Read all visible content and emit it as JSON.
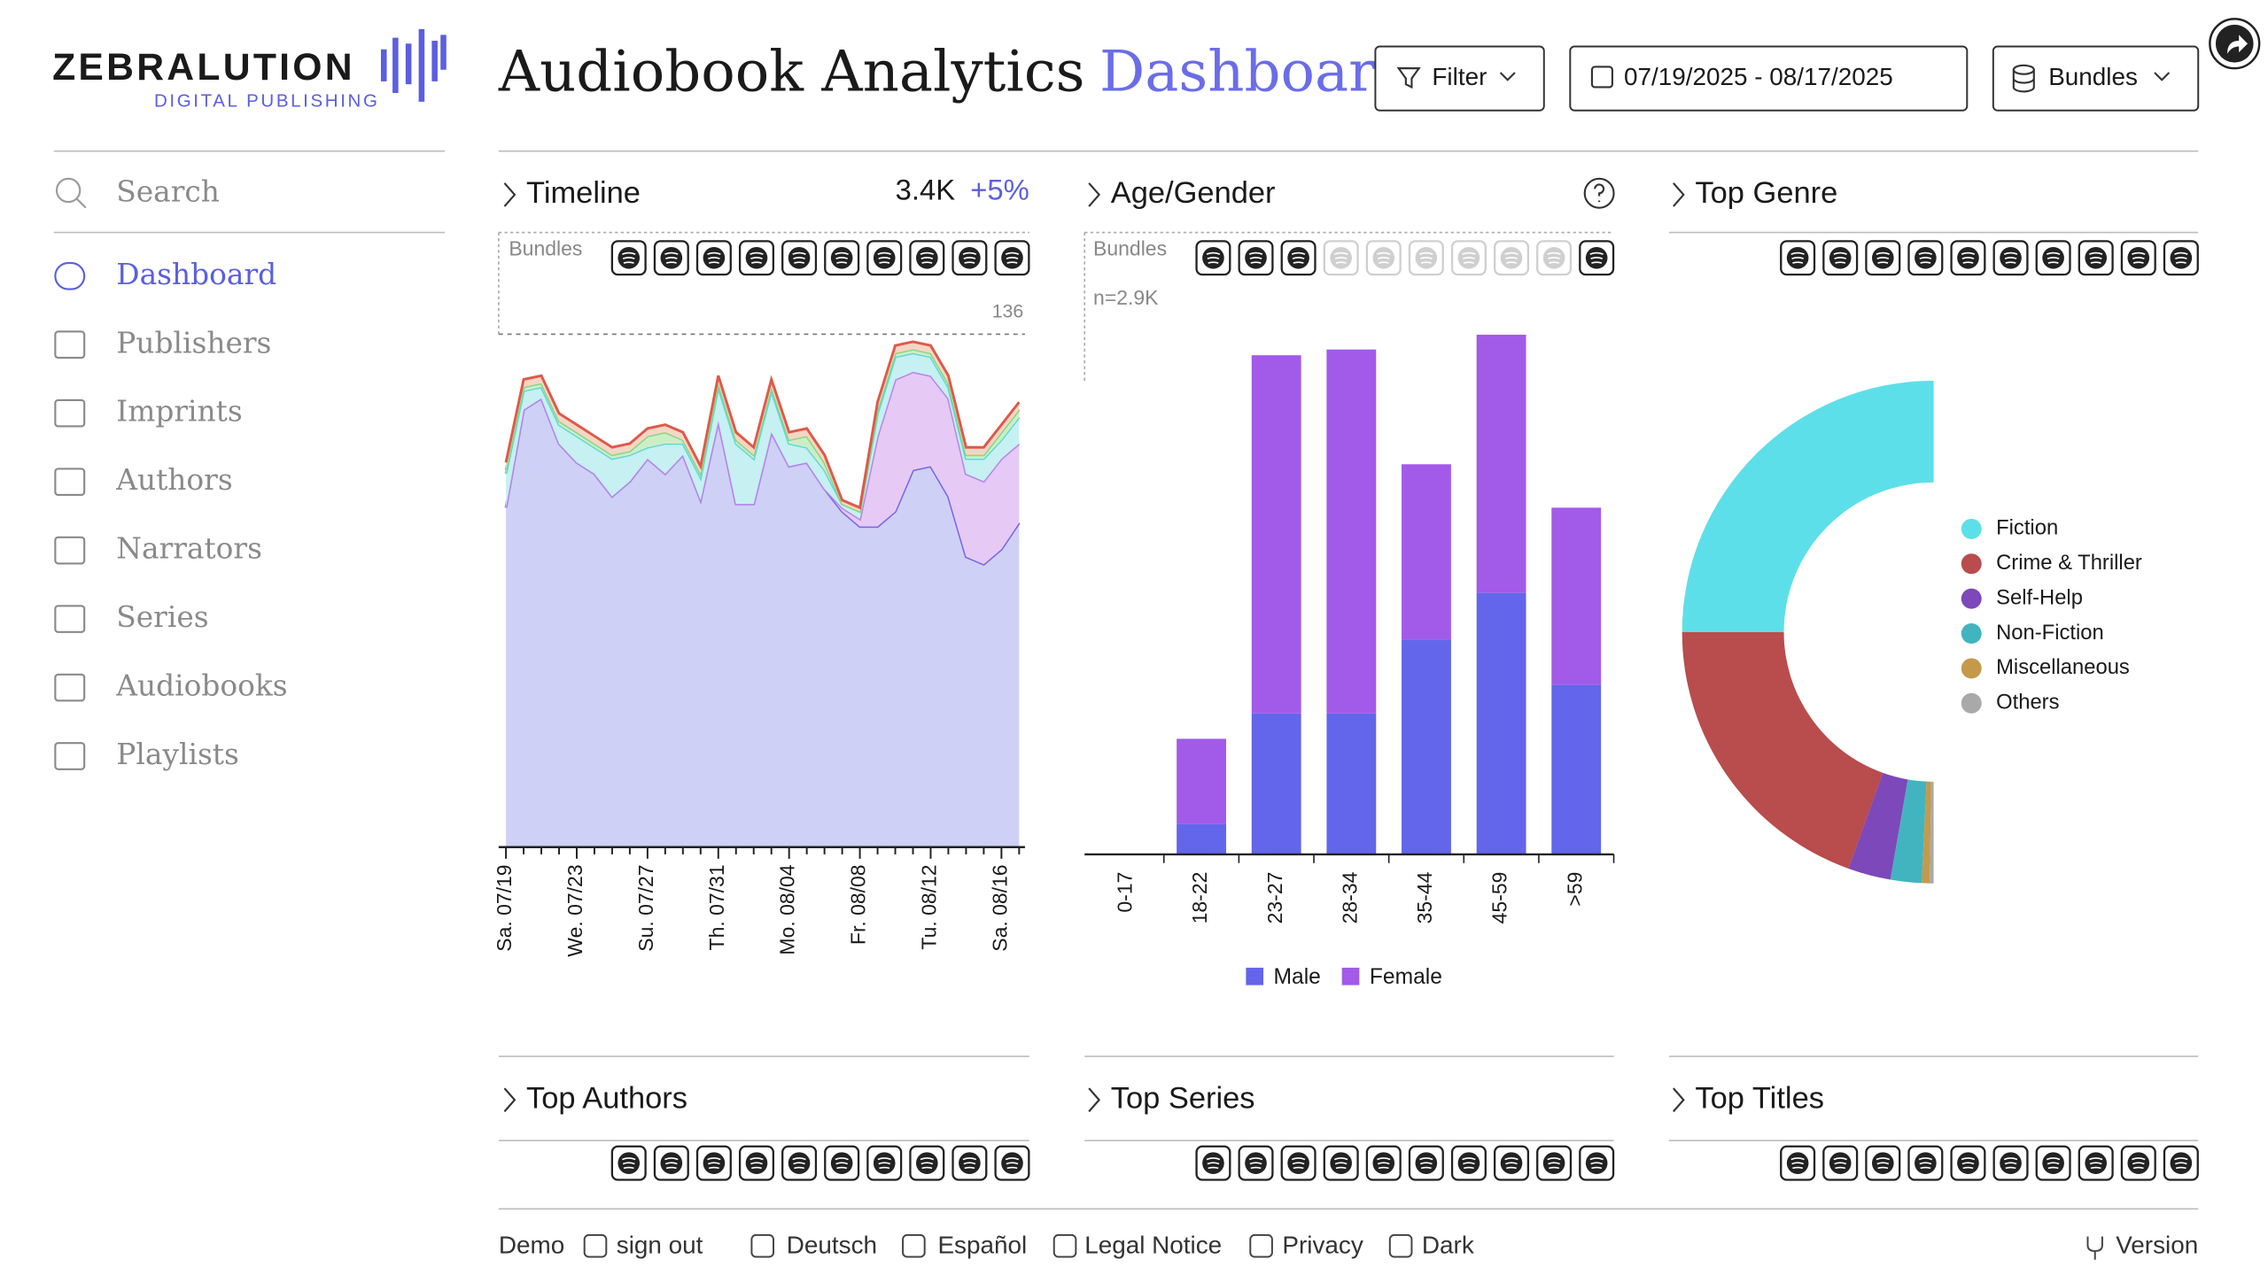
{
  "brand": {
    "name": "ZEBRALUTION",
    "tagline": "DIGITAL PUBLISHING"
  },
  "header": {
    "title": "Audiobook Analytics",
    "title_accent": "Dashboard",
    "filter": "Filter",
    "date_range": "07/19/2025 - 08/17/2025",
    "bundles": "Bundles"
  },
  "sidebar": {
    "search": "Search",
    "items": [
      "Dashboard",
      "Publishers",
      "Imprints",
      "Authors",
      "Narrators",
      "Series",
      "Audiobooks",
      "Playlists"
    ],
    "active": 0
  },
  "panels": {
    "timeline": {
      "title": "Timeline",
      "total": "3.4K",
      "change": "+5%",
      "bundles_label": "Bundles"
    },
    "age_gender": {
      "title": "Age/Gender",
      "bundles_label": "Bundles",
      "sample": "n=2.9K"
    },
    "top_genre": {
      "title": "Top Genre"
    },
    "top_authors": {
      "title": "Top Authors"
    },
    "top_series": {
      "title": "Top Series"
    },
    "top_titles": {
      "title": "Top Titles"
    }
  },
  "chart_data": [
    {
      "type": "area",
      "stacked": true,
      "categories": [
        "Sa. 07/19",
        null,
        null,
        null,
        "We. 07/23",
        null,
        null,
        null,
        "Su. 07/27",
        null,
        null,
        null,
        "Th. 07/31",
        null,
        null,
        null,
        "Mo. 08/04",
        null,
        null,
        null,
        "Fr. 08/08",
        null,
        null,
        null,
        "Tu. 08/12",
        null,
        null,
        null,
        "Sa. 08/16",
        null
      ],
      "series": [
        {
          "color": "#7466e4",
          "fill": "#cfd0f6",
          "values": [
            90,
            116,
            119,
            107,
            102,
            99,
            93,
            97,
            103,
            99,
            104,
            92,
            113,
            91,
            91,
            110,
            101,
            102,
            95,
            89,
            85,
            85,
            89,
            100,
            101,
            93,
            77,
            75,
            79,
            86
          ]
        },
        {
          "color": "#b784ea",
          "fill": "#e6c9f5",
          "values": [
            0,
            0,
            0,
            0,
            0,
            0,
            0,
            0,
            0,
            0,
            0,
            0,
            0,
            0,
            0,
            0,
            0,
            0,
            0,
            1,
            2,
            24,
            35,
            26,
            24,
            26,
            22,
            22,
            24,
            21
          ]
        },
        {
          "color": "#5fd8da",
          "fill": "#c6f0f2",
          "values": [
            9,
            5,
            3,
            5,
            7,
            7,
            10,
            7,
            3,
            8,
            3,
            6,
            9,
            16,
            12,
            11,
            6,
            4,
            5,
            1,
            2,
            6,
            6,
            5,
            5,
            3,
            4,
            6,
            5,
            7
          ]
        },
        {
          "color": "#84d884",
          "fill": "#cdeec4",
          "values": [
            1,
            1,
            1,
            1,
            1,
            1,
            1,
            1,
            3,
            3,
            1,
            1,
            1,
            1,
            1,
            1,
            1,
            3,
            2,
            0,
            0,
            1,
            1,
            1,
            1,
            1,
            1,
            1,
            2,
            2
          ]
        },
        {
          "color": "#e0584a",
          "fill": "#f4d6c4",
          "values": [
            2,
            2,
            2,
            2,
            2,
            2,
            2,
            2,
            2,
            2,
            2,
            2,
            2,
            2,
            2,
            2,
            2,
            2,
            2,
            1,
            1,
            2,
            2,
            2,
            2,
            2,
            2,
            2,
            2,
            2
          ]
        }
      ],
      "ylim": [
        0,
        136
      ],
      "reference_line": 136
    },
    {
      "type": "bar",
      "stacked": true,
      "categories": [
        "0-17",
        "18-22",
        "23-27",
        "28-34",
        "35-44",
        "45-59",
        ">59"
      ],
      "series": [
        {
          "name": "Male",
          "color": "#6366ea",
          "values": [
            0,
            37,
            172,
            172,
            262,
            319,
            207
          ]
        },
        {
          "name": "Female",
          "color": "#a25ae8",
          "values": [
            0,
            104,
            437,
            444,
            214,
            315,
            216
          ]
        }
      ],
      "ylim": [
        0,
        640
      ]
    },
    {
      "type": "pie",
      "donut": true,
      "half": true,
      "categories": [
        "Fiction",
        "Crime & Thriller",
        "Self-Help",
        "Non-Fiction",
        "Miscellaneous",
        "Others"
      ],
      "values": [
        50,
        39,
        5.5,
        4,
        1,
        0.5
      ],
      "colors": [
        "#5ddfe9",
        "#b94c4c",
        "#7d48b9",
        "#42b4bf",
        "#c49a4a",
        "#a9a9a9"
      ]
    }
  ],
  "footer": {
    "items": [
      "Demo",
      "sign out",
      "Deutsch",
      "Español",
      "Legal Notice",
      "Privacy",
      "Dark"
    ],
    "version": "Version"
  }
}
